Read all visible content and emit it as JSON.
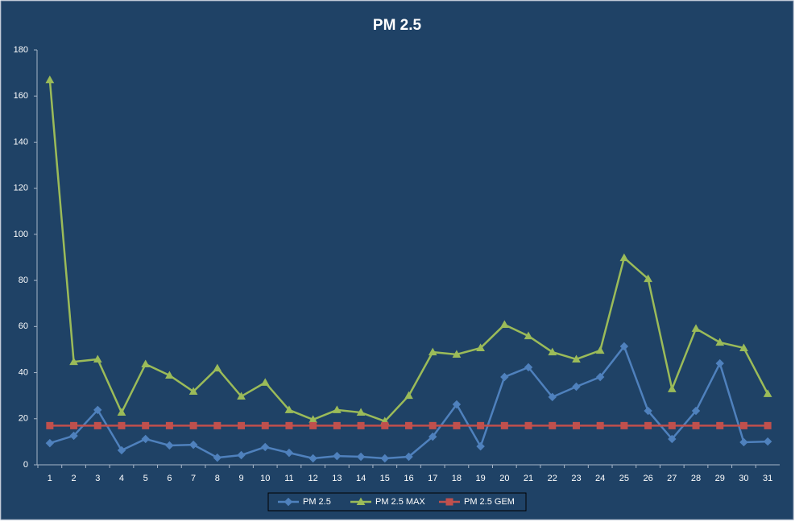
{
  "chart_data": {
    "type": "line",
    "title": "PM 2.5",
    "categories": [
      "1",
      "2",
      "3",
      "4",
      "5",
      "6",
      "7",
      "8",
      "9",
      "10",
      "11",
      "12",
      "13",
      "14",
      "15",
      "16",
      "17",
      "18",
      "19",
      "20",
      "21",
      "22",
      "23",
      "24",
      "25",
      "26",
      "27",
      "28",
      "29",
      "30",
      "31"
    ],
    "series": [
      {
        "name": "PM 2.5",
        "color": "#4f81bd",
        "marker": "diamond",
        "values": [
          9.4,
          12.6,
          23.8,
          6.3,
          11.2,
          8.4,
          8.7,
          3.1,
          4.2,
          7.7,
          5.2,
          2.8,
          3.8,
          3.5,
          2.8,
          3.5,
          12.2,
          26.2,
          8,
          38.1,
          42.3,
          29.4,
          33.9,
          38.1,
          51.4,
          23.4,
          11.2,
          23.4,
          44,
          9.8,
          10.1
        ]
      },
      {
        "name": "PM 2.5 MAX",
        "color": "#9bbb59",
        "marker": "triangle",
        "values": [
          167,
          44.7,
          45.8,
          22.7,
          43.7,
          38.8,
          31.8,
          41.9,
          29.7,
          35.7,
          23.8,
          19.6,
          23.8,
          22.7,
          18.9,
          30,
          48.9,
          47.9,
          50.7,
          60.8,
          55.9,
          48.9,
          45.8,
          49.6,
          89.8,
          80.7,
          32.9,
          59.1,
          53.1,
          50.7,
          30.8
        ]
      },
      {
        "name": "PM 2.5 GEM",
        "color": "#c0504d",
        "marker": "square",
        "values": [
          17,
          17,
          17,
          17,
          17,
          17,
          17,
          17,
          17,
          17,
          17,
          17,
          17,
          17,
          17,
          17,
          17,
          17,
          17,
          17,
          17,
          17,
          17,
          17,
          17,
          17,
          17,
          17,
          17,
          17,
          17
        ]
      }
    ],
    "ylim": [
      0,
      180
    ],
    "yticks": [
      0,
      20,
      40,
      60,
      80,
      100,
      120,
      140,
      160,
      180
    ],
    "grid": false,
    "legend": "bottom"
  }
}
